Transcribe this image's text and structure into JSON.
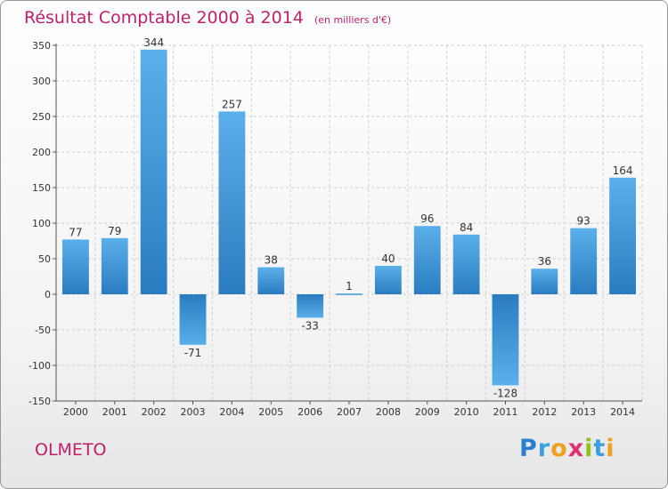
{
  "header": {
    "title": "Résultat Comptable 2000 à 2014",
    "subtitle": "(en milliers d'€)"
  },
  "footer": {
    "city": "OLMETO",
    "logo_letters": [
      "P",
      "r",
      "o",
      "x",
      "i",
      "t",
      "i"
    ],
    "logo_colors": [
      "#2a7fd0",
      "#3aa0e0",
      "#f0a020",
      "#e03070",
      "#90c020",
      "#3aa0e0",
      "#f0a020"
    ]
  },
  "chart_data": {
    "type": "bar",
    "title": "Résultat Comptable 2000 à 2014",
    "subtitle": "(en milliers d'€)",
    "categories": [
      "2000",
      "2001",
      "2002",
      "2003",
      "2004",
      "2005",
      "2006",
      "2007",
      "2008",
      "2009",
      "2010",
      "2011",
      "2012",
      "2013",
      "2014"
    ],
    "values": [
      77,
      79,
      344,
      -71,
      257,
      38,
      -33,
      1,
      40,
      96,
      84,
      -128,
      36,
      93,
      164
    ],
    "value_labels": [
      "77",
      "79",
      "344",
      "-71",
      "257",
      "38",
      "-33",
      "1",
      "40",
      "96",
      "84",
      "-128",
      "36",
      "93",
      "164"
    ],
    "ylim": [
      -150,
      350
    ],
    "yticks": [
      -150,
      -100,
      -50,
      0,
      50,
      100,
      150,
      200,
      250,
      300,
      350
    ],
    "ytick_labels": [
      "-150",
      "-100",
      "-50",
      "0",
      "50",
      "100",
      "150",
      "200",
      "250",
      "300",
      "350"
    ],
    "grid": true,
    "bar_color_light": "#5ab0ea",
    "bar_color_dark": "#2a7cc0"
  }
}
